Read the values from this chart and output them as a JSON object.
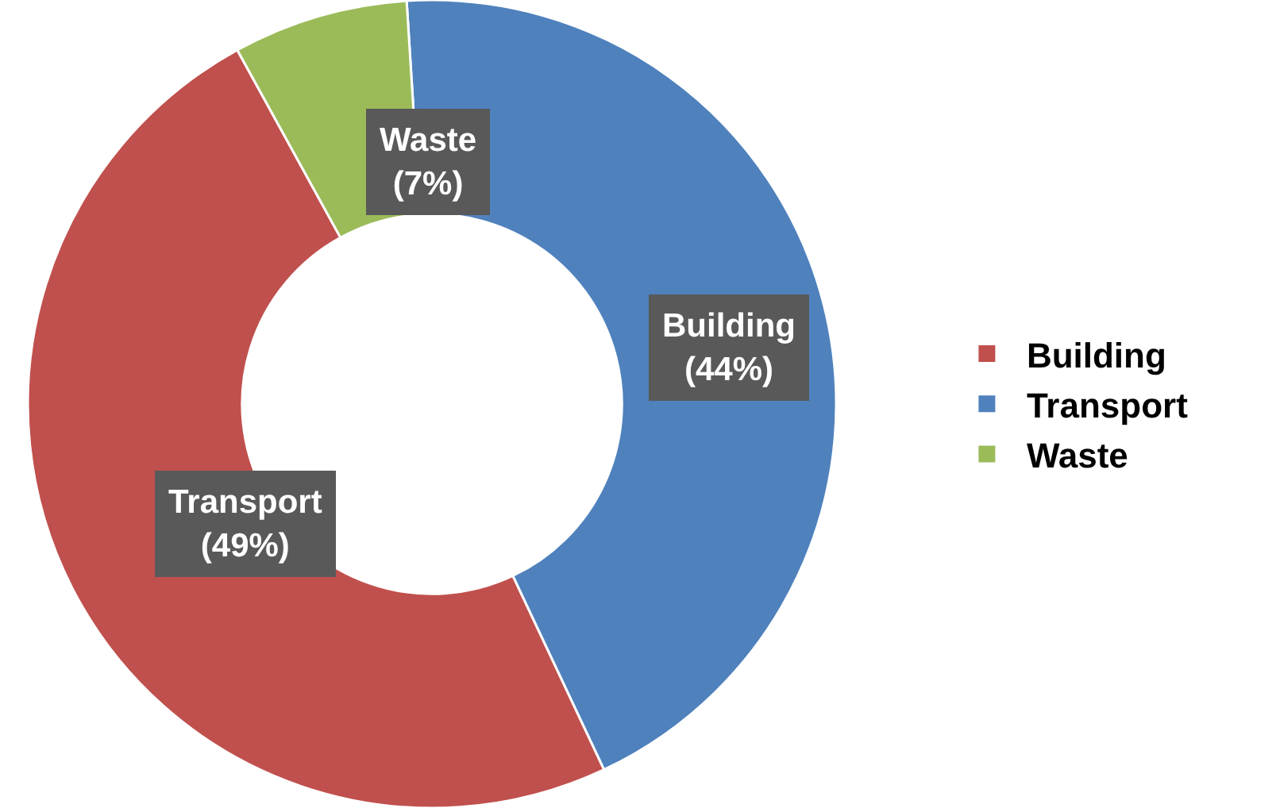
{
  "chart_data": {
    "type": "donut",
    "categories": [
      "Building",
      "Transport",
      "Waste"
    ],
    "values": [
      49,
      44,
      7
    ],
    "colors": [
      "#c0504d",
      "#4f81bd",
      "#9bbb59"
    ],
    "value_labels": [
      "Transport (49%)",
      "Building (44%)",
      "Waste (7%)"
    ],
    "legend": "right"
  }
}
